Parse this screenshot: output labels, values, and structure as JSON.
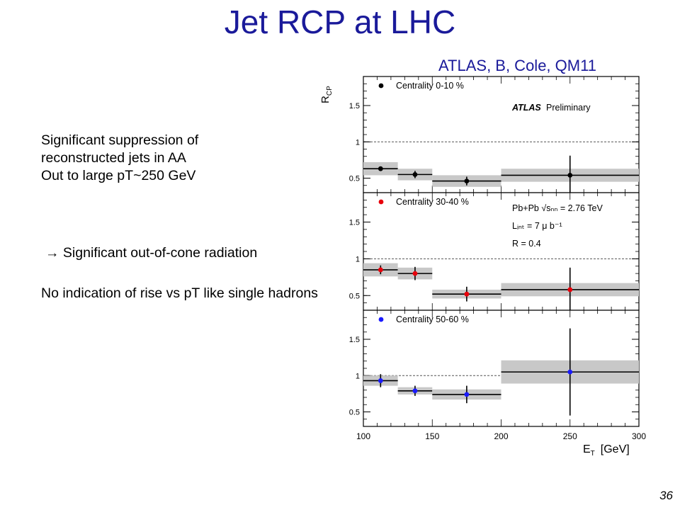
{
  "slide": {
    "title": "Jet RCP at LHC",
    "credit": "ATLAS, B, Cole, QM11",
    "bullet_lines": [
      "Significant suppression of",
      "reconstructed jets in AA",
      "Out to large pT~250 GeV"
    ],
    "arrow_glyph": "→",
    "arrow_text": "Significant out-of-cone radiation",
    "note": "No indication of rise vs pT like single hadrons",
    "page_number": "36"
  },
  "chart_data": {
    "type": "scatter",
    "ylabel_main": "R",
    "ylabel_sub": "CP",
    "xlabel_main": "E",
    "xlabel_sub": "T",
    "xlabel_unit": "[GeV]",
    "xlim": [
      100,
      300
    ],
    "ylim": [
      0.3,
      1.9
    ],
    "x_ticks": [
      "100",
      "150",
      "200",
      "250",
      "300"
    ],
    "y_ticks": [
      "0.5",
      "1",
      "1.5"
    ],
    "reference_line": 1,
    "atlas_label": "ATLAS",
    "preliminary_label": "Preliminary",
    "info_lines": [
      "Pb+Pb √sₙₙ = 2.76 TeV",
      "Lᵢₙₜ = 7 μ b⁻¹",
      "R = 0.4"
    ],
    "panels": [
      {
        "label": "Centrality  0-10 %",
        "color": "#000000",
        "points": [
          {
            "x": 112.5,
            "y": 0.63,
            "xlow": 100,
            "xhigh": 125,
            "err": 0.03,
            "sys": 0.09
          },
          {
            "x": 137.5,
            "y": 0.55,
            "xlow": 125,
            "xhigh": 150,
            "err": 0.05,
            "sys": 0.08
          },
          {
            "x": 175,
            "y": 0.46,
            "xlow": 150,
            "xhigh": 200,
            "err": 0.06,
            "sys": 0.08
          },
          {
            "x": 250,
            "y": 0.54,
            "xlow": 200,
            "xhigh": 300,
            "err": 0.27,
            "sys": 0.09
          }
        ]
      },
      {
        "label": "Centrality 30-40 %",
        "color": "#e8000b",
        "points": [
          {
            "x": 112.5,
            "y": 0.85,
            "xlow": 100,
            "xhigh": 125,
            "err": 0.06,
            "sys": 0.09
          },
          {
            "x": 137.5,
            "y": 0.8,
            "xlow": 125,
            "xhigh": 150,
            "err": 0.09,
            "sys": 0.08
          },
          {
            "x": 175,
            "y": 0.52,
            "xlow": 150,
            "xhigh": 200,
            "err": 0.1,
            "sys": 0.06
          },
          {
            "x": 250,
            "y": 0.58,
            "xlow": 200,
            "xhigh": 300,
            "err": 0.3,
            "sys": 0.09
          }
        ]
      },
      {
        "label": "Centrality 50-60 %",
        "color": "#1a1aff",
        "points": [
          {
            "x": 112.5,
            "y": 0.93,
            "xlow": 100,
            "xhigh": 125,
            "err": 0.09,
            "sys": 0.07
          },
          {
            "x": 137.5,
            "y": 0.79,
            "xlow": 125,
            "xhigh": 150,
            "err": 0.07,
            "sys": 0.05
          },
          {
            "x": 175,
            "y": 0.74,
            "xlow": 150,
            "xhigh": 200,
            "err": 0.12,
            "sys": 0.07
          },
          {
            "x": 250,
            "y": 1.05,
            "xlow": 200,
            "xhigh": 300,
            "err": 0.6,
            "sys": 0.16
          }
        ]
      }
    ]
  }
}
